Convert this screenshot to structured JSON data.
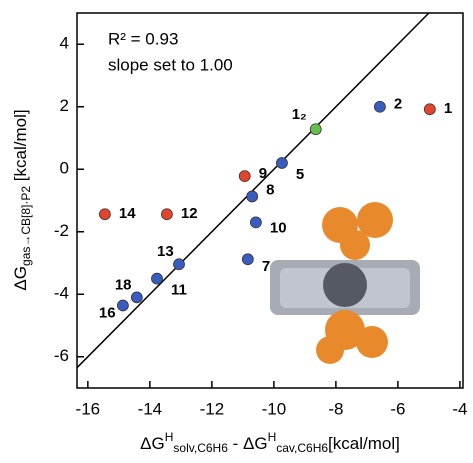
{
  "chart_data": {
    "type": "scatter",
    "annotations": [
      "R² = 0.93",
      "slope set to 1.00"
    ],
    "xlabel": {
      "main": "ΔG",
      "sup1": "H",
      "sub1": "solv,C6H6",
      "mid": " - ΔG",
      "sup2": "H",
      "sub2": "cav,C6H6",
      "unit": "[kcal/mol]"
    },
    "ylabel": {
      "main": "ΔG",
      "sub": "gas→CB[8]·P2",
      "unit": " [kcal/mol]"
    },
    "x": [
      -4.97,
      -6.58,
      -8.65,
      -9.74,
      -10.94,
      -10.7,
      -10.58,
      -10.84,
      -13.45,
      -15.45,
      -13.06,
      -13.77,
      -14.42,
      -14.87
    ],
    "values": [
      1.92,
      2.0,
      1.28,
      0.2,
      -0.22,
      -0.87,
      -1.7,
      -2.88,
      -1.44,
      -1.44,
      -3.04,
      -3.5,
      -4.1,
      -4.36
    ],
    "point_labels": [
      "1",
      "2",
      "1₂",
      "5",
      "9",
      "8",
      "10",
      "7",
      "12",
      "14",
      "13",
      "11",
      "18",
      "16"
    ],
    "colors": [
      "#e2452b",
      "#3a5cc0",
      "#66c04c",
      "#3a5cc0",
      "#e2452b",
      "#3a5cc0",
      "#3a5cc0",
      "#3a5cc0",
      "#e2452b",
      "#e2452b",
      "#3a5cc0",
      "#3a5cc0",
      "#3a5cc0",
      "#3a5cc0"
    ],
    "fit": {
      "x": [
        -16.35,
        -5.0
      ],
      "y": [
        -6.35,
        5.0
      ],
      "color": "#000000"
    },
    "xlim": [
      -16.35,
      -3.9
    ],
    "ylim": [
      -7,
      5
    ],
    "xticks": [
      -16,
      -14,
      -12,
      -10,
      -8,
      -6,
      -4
    ],
    "yticks": [
      -6,
      -4,
      -2,
      0,
      2,
      4
    ]
  }
}
